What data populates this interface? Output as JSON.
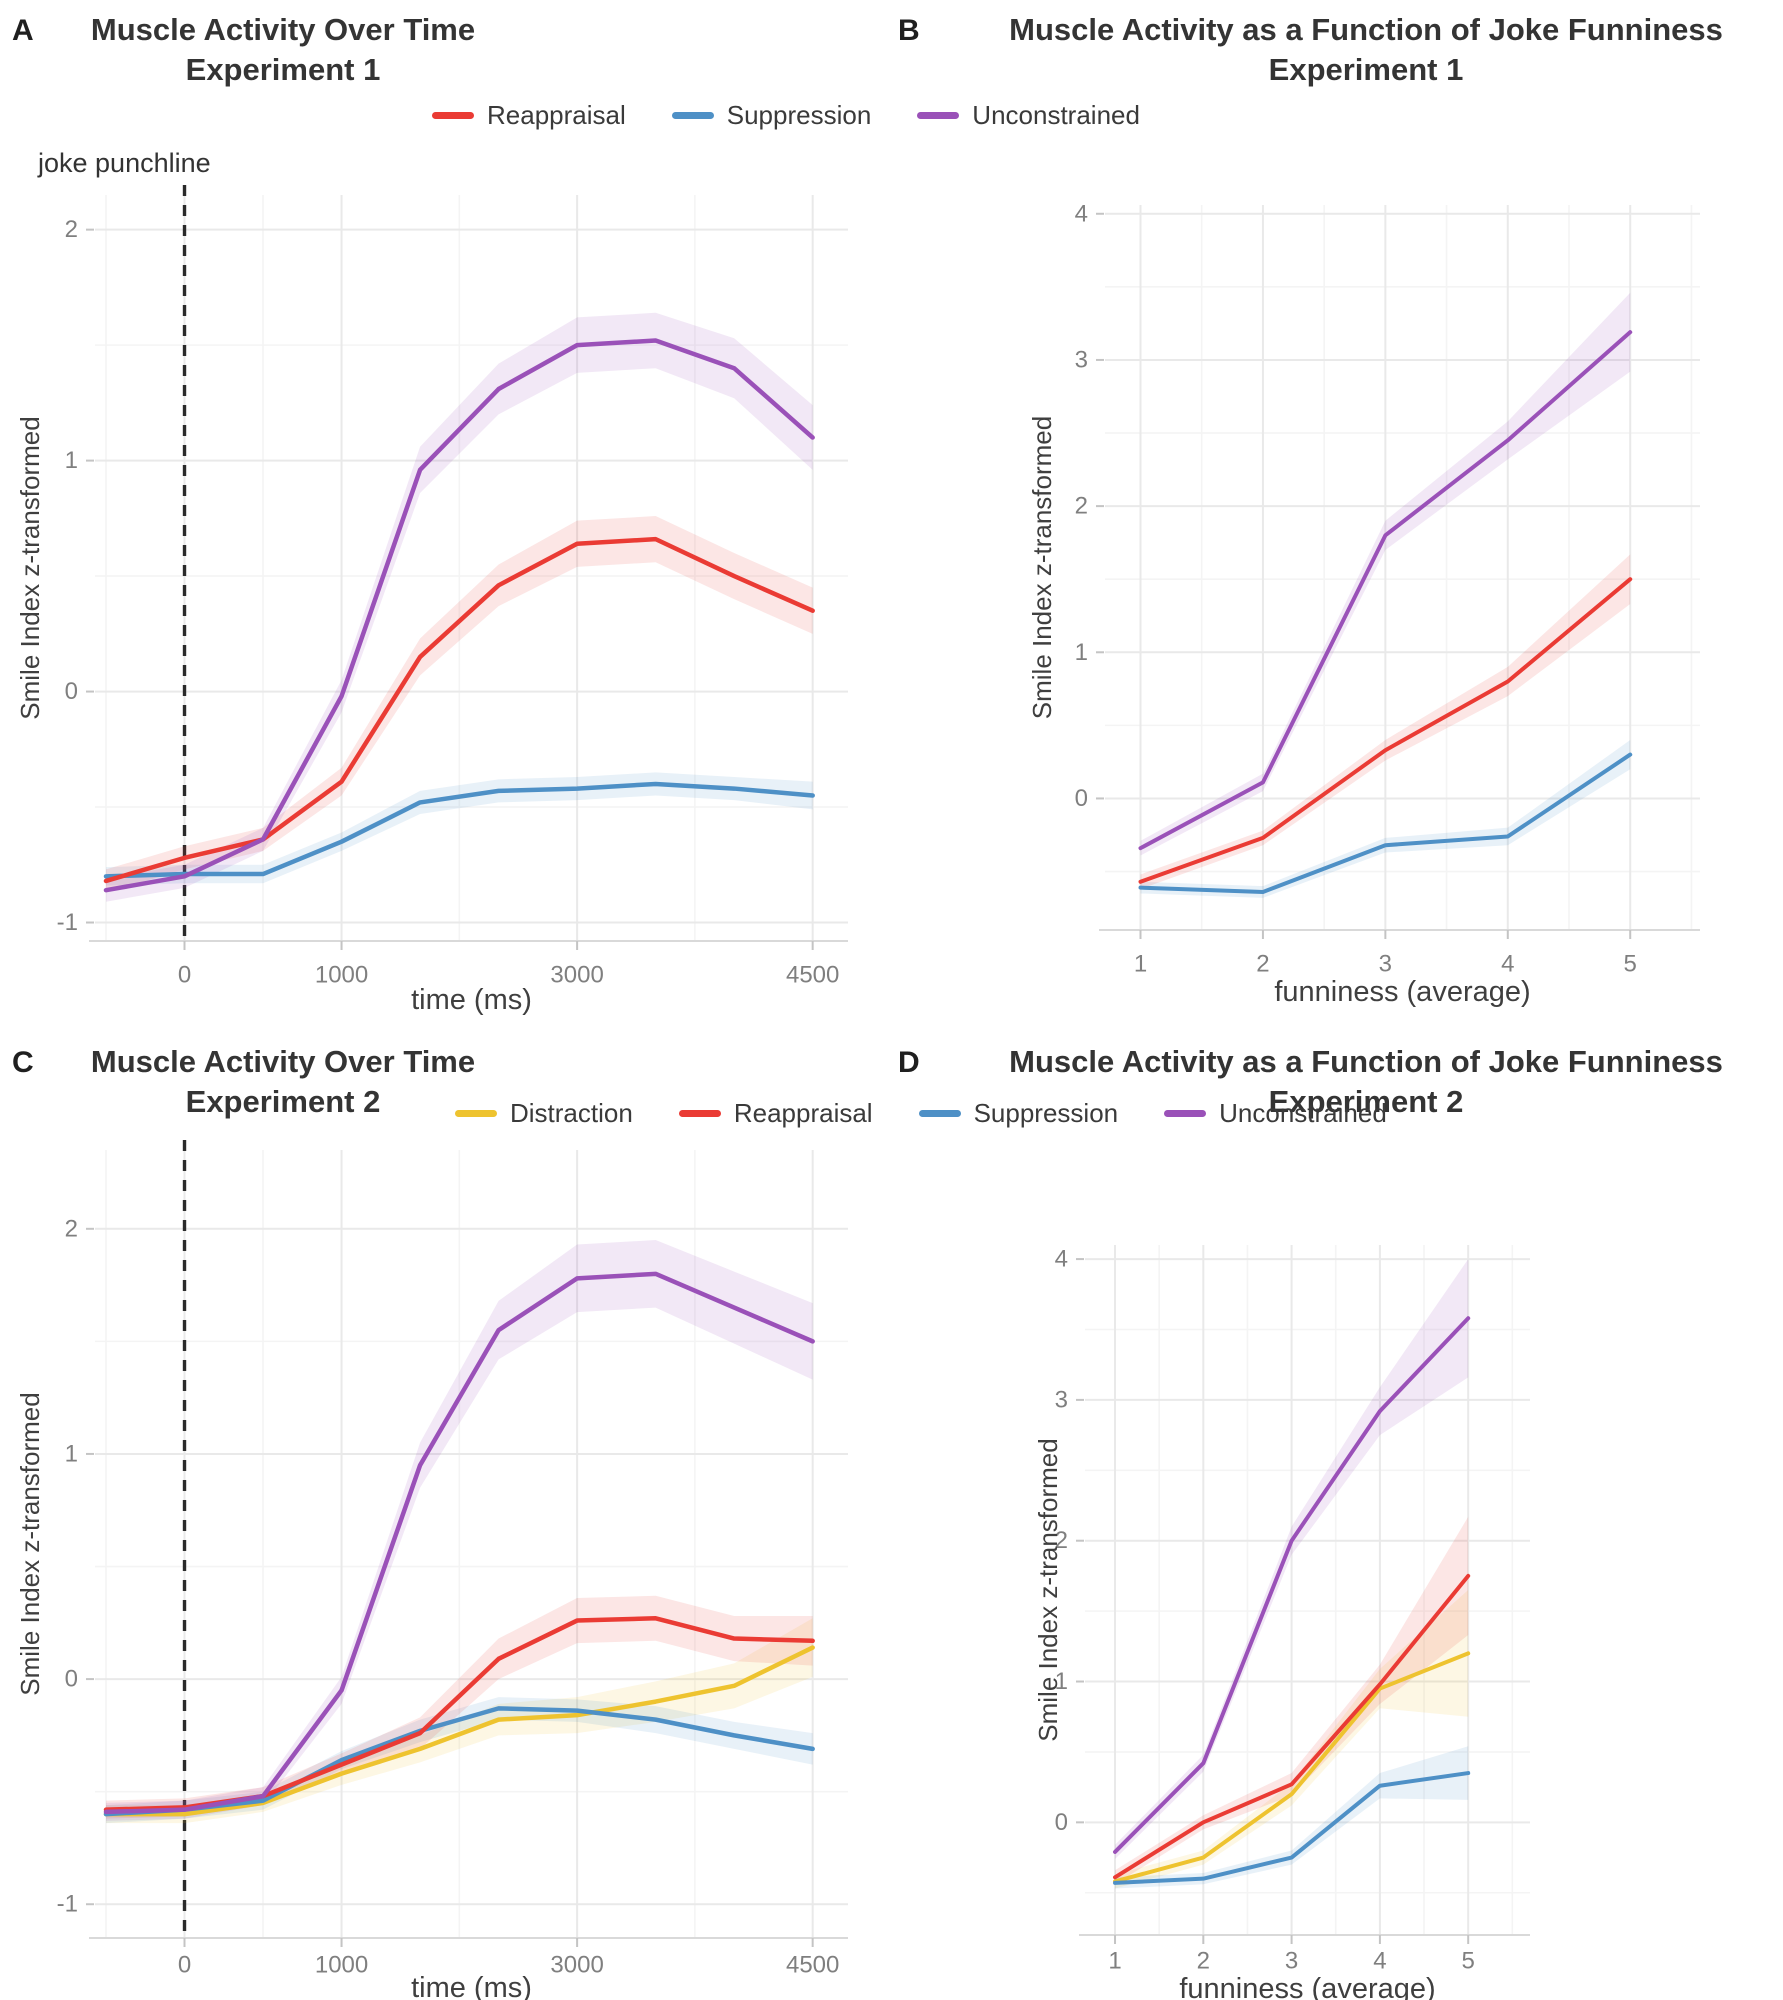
{
  "figure": {
    "background": "#ffffff"
  },
  "colors": {
    "reappraisal": "#ea3b34",
    "suppression": "#4e90c6",
    "unconstrained": "#9a51b8",
    "distraction": "#eec32f",
    "grid_major": "#e9e9e9",
    "grid_minor": "#f4f4f4",
    "axis_line": "#d9d9d9",
    "tick_mark": "#c4c4c4",
    "tick_label": "#7f7f7f",
    "axis_title": "#3f3f3f",
    "vline": "#2a2a2a"
  },
  "legends": [
    {
      "items": [
        {
          "label": "Reappraisal",
          "color": "#ea3b34"
        },
        {
          "label": "Suppression",
          "color": "#4e90c6"
        },
        {
          "label": "Unconstrained",
          "color": "#9a51b8"
        }
      ]
    },
    {
      "items": [
        {
          "label": "Distraction",
          "color": "#eec32f"
        },
        {
          "label": "Reappraisal",
          "color": "#ea3b34"
        },
        {
          "label": "Suppression",
          "color": "#4e90c6"
        },
        {
          "label": "Unconstrained",
          "color": "#9a51b8"
        }
      ]
    }
  ],
  "chart_data": [
    {
      "id": "A",
      "tag": "A",
      "type": "line",
      "title": "Muscle Activity Over Time",
      "subtitle": "Experiment 1",
      "xlabel": "time  (ms)",
      "ylabel": "Smile Index z-transformed",
      "x_times_ms": [
        -500,
        0,
        500,
        1000,
        1500,
        2000,
        3000,
        3500,
        4000,
        4500
      ],
      "x_plot": [
        0,
        1,
        2,
        3,
        4,
        5,
        6,
        7,
        8,
        9
      ],
      "x_ticks": [
        {
          "x": 1,
          "label": "0"
        },
        {
          "x": 3,
          "label": "1000"
        },
        {
          "x": 6,
          "label": "3000"
        },
        {
          "x": 9,
          "label": "4500"
        }
      ],
      "x_minor": [
        0,
        2,
        4.5,
        7.5
      ],
      "y_ticks": [
        2,
        1,
        0,
        -1
      ],
      "y_minor": [
        1.5,
        0.5,
        -0.5
      ],
      "xlim": [
        -0.14,
        9.45
      ],
      "ylim": [
        -1.08,
        2.15
      ],
      "vline_x": 1,
      "vline_label": "joke punchline",
      "series": [
        {
          "name": "Suppression",
          "color": "#4e90c6",
          "values": [
            -0.8,
            -0.79,
            -0.79,
            -0.65,
            -0.48,
            -0.43,
            -0.42,
            -0.4,
            -0.42,
            -0.45
          ],
          "band": [
            0.04,
            0.04,
            0.04,
            0.04,
            0.05,
            0.05,
            0.05,
            0.05,
            0.05,
            0.06
          ]
        },
        {
          "name": "Reappraisal",
          "color": "#ea3b34",
          "values": [
            -0.82,
            -0.72,
            -0.64,
            -0.39,
            0.15,
            0.46,
            0.64,
            0.66,
            0.5,
            0.35
          ],
          "band": [
            0.05,
            0.05,
            0.05,
            0.06,
            0.08,
            0.09,
            0.1,
            0.1,
            0.1,
            0.1
          ]
        },
        {
          "name": "Unconstrained",
          "color": "#9a51b8",
          "values": [
            -0.86,
            -0.8,
            -0.64,
            -0.02,
            0.96,
            1.31,
            1.5,
            1.52,
            1.4,
            1.1
          ],
          "band": [
            0.05,
            0.05,
            0.05,
            0.07,
            0.1,
            0.11,
            0.12,
            0.12,
            0.13,
            0.14
          ]
        }
      ]
    },
    {
      "id": "B",
      "tag": "B",
      "type": "line",
      "title": "Muscle Activity as a Function of Joke Funniness",
      "subtitle": "Experiment 1",
      "xlabel": "funniness (average)",
      "ylabel": "Smile Index z-transformed",
      "x_plot": [
        1,
        2,
        3,
        4,
        5
      ],
      "x_ticks": [
        {
          "x": 1,
          "label": "1"
        },
        {
          "x": 2,
          "label": "2"
        },
        {
          "x": 3,
          "label": "3"
        },
        {
          "x": 4,
          "label": "4"
        },
        {
          "x": 5,
          "label": "5"
        }
      ],
      "x_minor": [
        1.5,
        2.5,
        3.5,
        4.5,
        5.5
      ],
      "y_ticks": [
        4,
        3,
        2,
        1,
        0
      ],
      "y_minor": [
        3.5,
        2.5,
        1.5,
        0.5,
        -0.5
      ],
      "xlim": [
        0.71,
        5.57
      ],
      "ylim": [
        -0.9,
        4.06
      ],
      "series": [
        {
          "name": "Suppression",
          "color": "#4e90c6",
          "values": [
            -0.61,
            -0.64,
            -0.32,
            -0.26,
            0.3
          ],
          "band": [
            0.04,
            0.04,
            0.05,
            0.06,
            0.1
          ]
        },
        {
          "name": "Reappraisal",
          "color": "#ea3b34",
          "values": [
            -0.57,
            -0.27,
            0.33,
            0.8,
            1.5
          ],
          "band": [
            0.05,
            0.05,
            0.07,
            0.1,
            0.17
          ]
        },
        {
          "name": "Unconstrained",
          "color": "#9a51b8",
          "values": [
            -0.34,
            0.11,
            1.8,
            2.45,
            3.19
          ],
          "band": [
            0.05,
            0.06,
            0.1,
            0.13,
            0.27
          ]
        }
      ]
    },
    {
      "id": "C",
      "tag": "C",
      "type": "line",
      "title": "Muscle Activity Over Time",
      "subtitle": "Experiment 2",
      "xlabel": "time  (ms)",
      "ylabel": "Smile Index z-transformed",
      "x_times_ms": [
        -500,
        0,
        500,
        1000,
        1500,
        2000,
        3000,
        3500,
        4000,
        4500
      ],
      "x_plot": [
        0,
        1,
        2,
        3,
        4,
        5,
        6,
        7,
        8,
        9
      ],
      "x_ticks": [
        {
          "x": 1,
          "label": "0"
        },
        {
          "x": 3,
          "label": "1000"
        },
        {
          "x": 6,
          "label": "3000"
        },
        {
          "x": 9,
          "label": "4500"
        }
      ],
      "x_minor": [
        0,
        2,
        4.5,
        7.5
      ],
      "y_ticks": [
        2,
        1,
        0,
        -1
      ],
      "y_minor": [
        1.5,
        0.5,
        -0.5
      ],
      "xlim": [
        -0.14,
        9.45
      ],
      "ylim": [
        -1.15,
        2.35
      ],
      "vline_x": 1,
      "series": [
        {
          "name": "Distraction",
          "color": "#eec32f",
          "values": [
            -0.6,
            -0.6,
            -0.55,
            -0.42,
            -0.31,
            -0.18,
            -0.16,
            -0.1,
            -0.03,
            0.14
          ],
          "band": [
            0.04,
            0.04,
            0.04,
            0.05,
            0.06,
            0.07,
            0.08,
            0.09,
            0.1,
            0.13
          ]
        },
        {
          "name": "Suppression",
          "color": "#4e90c6",
          "values": [
            -0.6,
            -0.58,
            -0.54,
            -0.36,
            -0.23,
            -0.13,
            -0.14,
            -0.18,
            -0.25,
            -0.31
          ],
          "band": [
            0.04,
            0.04,
            0.04,
            0.04,
            0.05,
            0.05,
            0.05,
            0.06,
            0.06,
            0.07
          ]
        },
        {
          "name": "Reappraisal",
          "color": "#ea3b34",
          "values": [
            -0.58,
            -0.57,
            -0.52,
            -0.38,
            -0.24,
            0.09,
            0.26,
            0.27,
            0.18,
            0.17
          ],
          "band": [
            0.04,
            0.04,
            0.04,
            0.05,
            0.07,
            0.09,
            0.1,
            0.1,
            0.1,
            0.11
          ]
        },
        {
          "name": "Unconstrained",
          "color": "#9a51b8",
          "values": [
            -0.59,
            -0.58,
            -0.52,
            -0.05,
            0.95,
            1.55,
            1.78,
            1.8,
            1.65,
            1.5
          ],
          "band": [
            0.04,
            0.04,
            0.04,
            0.06,
            0.1,
            0.13,
            0.15,
            0.15,
            0.16,
            0.17
          ]
        }
      ]
    },
    {
      "id": "D",
      "tag": "D",
      "type": "line",
      "title": "Muscle Activity as a Function of Joke Funniness",
      "subtitle": "Experiment 2",
      "xlabel": "funniness (average)",
      "ylabel": "Smile Index z-transformed",
      "x_plot": [
        1,
        2,
        3,
        4,
        5
      ],
      "x_ticks": [
        {
          "x": 1,
          "label": "1"
        },
        {
          "x": 2,
          "label": "2"
        },
        {
          "x": 3,
          "label": "3"
        },
        {
          "x": 4,
          "label": "4"
        },
        {
          "x": 5,
          "label": "5"
        }
      ],
      "x_minor": [
        1.5,
        2.5,
        3.5,
        4.5,
        5.5
      ],
      "y_ticks": [
        4,
        3,
        2,
        1,
        0
      ],
      "y_minor": [
        3.5,
        2.5,
        1.5,
        0.5,
        -0.5
      ],
      "xlim": [
        0.66,
        5.7
      ],
      "ylim": [
        -0.8,
        4.1
      ],
      "series": [
        {
          "name": "Distraction",
          "color": "#eec32f",
          "values": [
            -0.42,
            -0.25,
            0.2,
            0.95,
            1.2
          ],
          "band": [
            0.05,
            0.05,
            0.08,
            0.14,
            0.45
          ]
        },
        {
          "name": "Suppression",
          "color": "#4e90c6",
          "values": [
            -0.43,
            -0.4,
            -0.25,
            0.26,
            0.35
          ],
          "band": [
            0.04,
            0.04,
            0.05,
            0.09,
            0.19
          ]
        },
        {
          "name": "Reappraisal",
          "color": "#ea3b34",
          "values": [
            -0.39,
            0.0,
            0.27,
            0.98,
            1.75
          ],
          "band": [
            0.05,
            0.05,
            0.08,
            0.14,
            0.42
          ]
        },
        {
          "name": "Unconstrained",
          "color": "#9a51b8",
          "values": [
            -0.21,
            0.42,
            2.0,
            2.92,
            3.58
          ],
          "band": [
            0.05,
            0.06,
            0.1,
            0.17,
            0.42
          ]
        }
      ]
    }
  ]
}
